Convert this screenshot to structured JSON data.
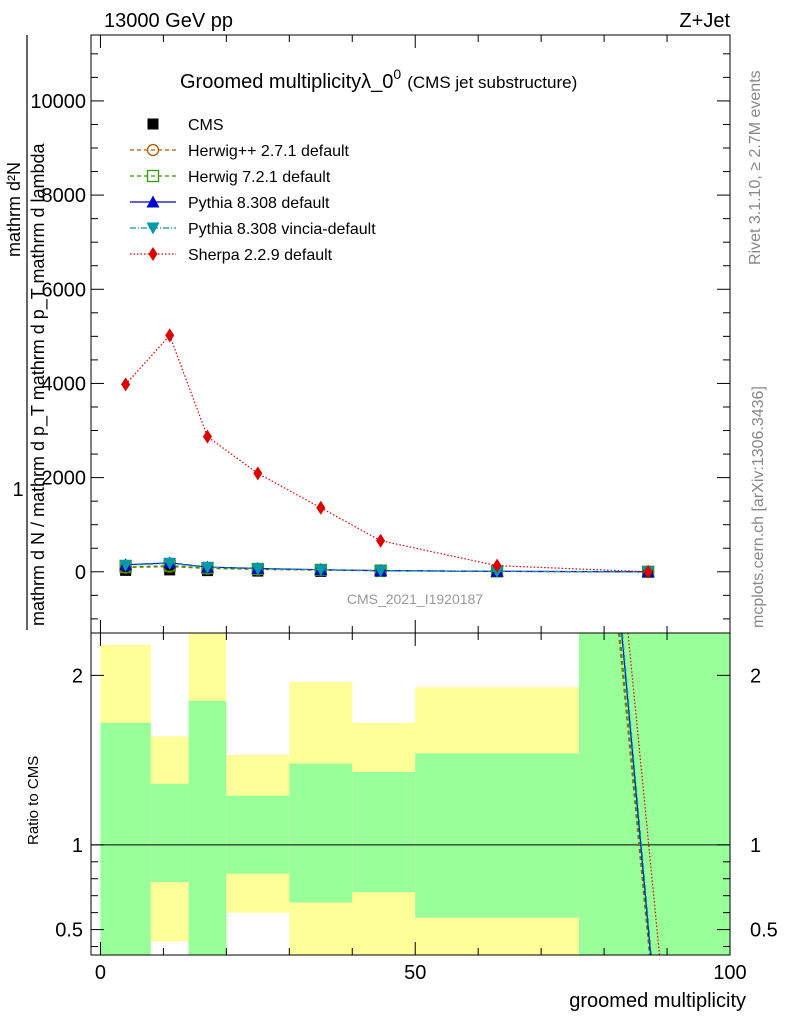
{
  "header": {
    "left": "13000 GeV pp",
    "right": "Z+Jet"
  },
  "side_labels": {
    "rivet": "Rivet 3.1.10, ≥ 2.7M events",
    "mcplots": "mcplots.cern.ch [arXiv:1306.3436]"
  },
  "chart_data": [
    {
      "type": "line",
      "title": "Groomed multiplicityλ_0",
      "title_sup": "0",
      "subtitle": "(CMS jet substructure)",
      "ylabel_parts": [
        "1",
        "mathrm d N / mathrm d p_T mathrm d p_T mathrm d lambda",
        "mathrm d²N"
      ],
      "watermark": "CMS_2021_I1920187",
      "xlim": [
        -1.5,
        100
      ],
      "ylim": [
        -1300,
        11400
      ],
      "yticks": [
        0,
        2000,
        4000,
        6000,
        8000,
        10000
      ],
      "ytick_labels": [
        "0",
        "2000",
        "4000",
        "6000",
        "8000",
        "10000"
      ],
      "legend_position": "top-left",
      "x": [
        4,
        11,
        17,
        25,
        35,
        44.5,
        63,
        87
      ],
      "series": [
        {
          "name": "CMS",
          "color": "#000000",
          "marker": "square",
          "line": "none",
          "values": [
            30,
            40,
            25,
            15,
            8,
            5,
            2,
            0
          ]
        },
        {
          "name": "Herwig++ 2.7.1 default",
          "color": "#b35900",
          "marker": "circle-open",
          "line": "dashed",
          "values": [
            90,
            110,
            70,
            50,
            35,
            20,
            8,
            0
          ]
        },
        {
          "name": "Herwig 7.2.1 default",
          "color": "#339900",
          "marker": "square-open",
          "line": "dashed",
          "values": [
            100,
            130,
            80,
            60,
            40,
            25,
            10,
            0
          ]
        },
        {
          "name": "Pythia 8.308 default",
          "color": "#0000cc",
          "marker": "triangle-up",
          "line": "solid",
          "values": [
            150,
            190,
            100,
            70,
            45,
            25,
            10,
            0
          ]
        },
        {
          "name": "Pythia 8.308 vincia-default",
          "color": "#0099aa",
          "marker": "triangle-down",
          "line": "dashdot",
          "values": [
            140,
            180,
            95,
            65,
            42,
            23,
            9,
            0
          ]
        },
        {
          "name": "Sherpa 2.2.9 default",
          "color": "#dd0000",
          "marker": "diamond",
          "line": "dotted",
          "values": [
            3980,
            5020,
            2870,
            2090,
            1360,
            660,
            130,
            0
          ]
        }
      ]
    },
    {
      "type": "line",
      "ylabel": "Ratio to CMS",
      "xlabel": "groomed multiplicity",
      "xlim": [
        -1.5,
        100
      ],
      "ylim": [
        0.35,
        2.25
      ],
      "xticks": [
        0,
        50,
        100
      ],
      "xtick_labels": [
        "0",
        "50",
        "100"
      ],
      "yticks": [
        0.5,
        1,
        2
      ],
      "ytick_labels": [
        "0.5",
        "1",
        "2"
      ],
      "bands": [
        {
          "x0": 0,
          "x1": 8,
          "yellow": [
            0.35,
            2.18
          ],
          "green": [
            0.35,
            1.72
          ]
        },
        {
          "x0": 8,
          "x1": 14,
          "yellow": [
            0.43,
            1.64
          ],
          "green": [
            0.78,
            1.36
          ]
        },
        {
          "x0": 14,
          "x1": 20,
          "yellow": [
            0.35,
            2.25
          ],
          "green": [
            0.35,
            1.85
          ]
        },
        {
          "x0": 20,
          "x1": 30,
          "yellow": [
            0.6,
            1.53
          ],
          "green": [
            0.83,
            1.29
          ]
        },
        {
          "x0": 30,
          "x1": 40,
          "yellow": [
            0.35,
            1.96
          ],
          "green": [
            0.66,
            1.48
          ]
        },
        {
          "x0": 40,
          "x1": 50,
          "yellow": [
            0.35,
            1.72
          ],
          "green": [
            0.72,
            1.43
          ]
        },
        {
          "x0": 50,
          "x1": 76,
          "yellow": [
            0.35,
            1.93
          ],
          "green": [
            0.57,
            1.54
          ]
        },
        {
          "x0": 76,
          "x1": 100,
          "yellow": [
            0.35,
            2.25
          ],
          "green": [
            0.35,
            2.25
          ]
        }
      ],
      "ratio_lines": [
        {
          "color": "#b35900",
          "dash": "4,3",
          "x": [
            82.3,
            87.2
          ],
          "y": [
            2.25,
            0.35
          ]
        },
        {
          "color": "#339900",
          "dash": "4,3",
          "x": [
            82.5,
            87.3
          ],
          "y": [
            2.25,
            0.35
          ]
        },
        {
          "color": "#0000cc",
          "dash": "",
          "x": [
            82.8,
            87.4
          ],
          "y": [
            2.25,
            0.35
          ]
        },
        {
          "color": "#0099aa",
          "dash": "6,2,1,2",
          "x": [
            82.9,
            87.5
          ],
          "y": [
            2.25,
            0.35
          ]
        },
        {
          "color": "#dd0000",
          "dash": "1.5,2",
          "x": [
            83.8,
            88.8
          ],
          "y": [
            2.25,
            0.35
          ]
        }
      ]
    }
  ]
}
